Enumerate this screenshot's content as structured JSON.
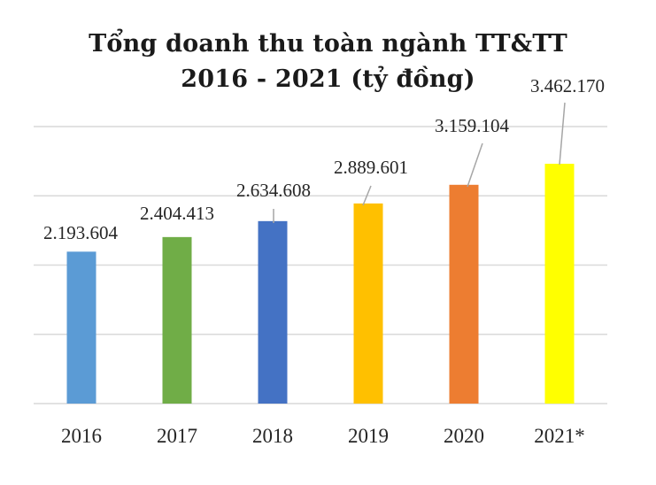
{
  "chart_data": {
    "type": "bar",
    "title_lines": [
      "Tổng doanh thu toàn ngành TT&TT",
      "2016 - 2021 (tỷ đồng)"
    ],
    "categories": [
      "2016",
      "2017",
      "2018",
      "2019",
      "2020",
      "2021*"
    ],
    "values": [
      2193604,
      2404413,
      2634608,
      2889601,
      3159104,
      3462170
    ],
    "value_labels": [
      "2.193.604",
      "2.404.413",
      "2.634.608",
      "2.889.601",
      "3.159.104",
      "3.462.170"
    ],
    "colors": [
      "#5b9bd5",
      "#70ad47",
      "#4472c4",
      "#ffc000",
      "#ed7d31",
      "#ffff00"
    ],
    "ylim": [
      0,
      4000000
    ],
    "grid": true,
    "legend": "none",
    "gridline_color": "#d9d9d9",
    "leader_color": "#a6a6a6",
    "text_color": "#262626"
  }
}
